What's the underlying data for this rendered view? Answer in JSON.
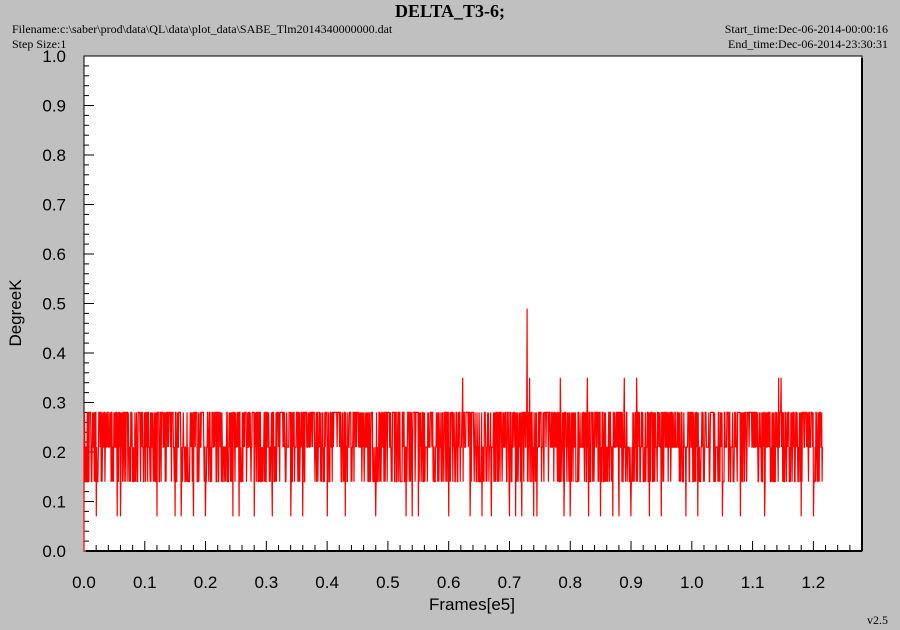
{
  "header": {
    "title": "DELTA_T3-6;",
    "filename": "Filename:c:\\saber\\prod\\data\\QL\\data\\plot_data\\SABE_Tlm2014340000000.dat",
    "step_size": "Step Size:1",
    "start_time": "Start_time:Dec-06-2014-00:00:16",
    "end_time": "End_time:Dec-06-2014-23:30:31"
  },
  "version": "v2.5",
  "colors": {
    "background": "#c0c0c0",
    "plot_bg": "#ffffff",
    "series": "#ff0000"
  },
  "chart_data": {
    "type": "line",
    "title": "DELTA_T3-6;",
    "xlabel": "Frames[e5]",
    "ylabel": "DegreeK",
    "xlim": [
      0.0,
      1.28
    ],
    "ylim": [
      0.0,
      1.0
    ],
    "x_ticks": [
      "0.0",
      "0.1",
      "0.2",
      "0.3",
      "0.4",
      "0.5",
      "0.6",
      "0.7",
      "0.8",
      "0.9",
      "1.0",
      "1.1",
      "1.2"
    ],
    "y_ticks": [
      "0.0",
      "0.1",
      "0.2",
      "0.3",
      "0.4",
      "0.5",
      "0.6",
      "0.7",
      "0.8",
      "0.9",
      "1.0"
    ],
    "grid": false,
    "series": [
      {
        "color": "#ff0000",
        "x_range": [
          0.0,
          1.215
        ],
        "levels": [
          0.07,
          0.14,
          0.21,
          0.28
        ],
        "typical_min": 0.14,
        "typical_max": 0.28,
        "spikes": [
          {
            "x": 0.623,
            "y": 0.35
          },
          {
            "x": 0.729,
            "y": 0.49
          },
          {
            "x": 0.733,
            "y": 0.35
          },
          {
            "x": 0.784,
            "y": 0.35
          },
          {
            "x": 0.828,
            "y": 0.35
          },
          {
            "x": 0.889,
            "y": 0.35
          },
          {
            "x": 0.909,
            "y": 0.35
          },
          {
            "x": 1.143,
            "y": 0.35
          },
          {
            "x": 1.147,
            "y": 0.35
          }
        ],
        "dips": [
          0.02,
          0.055,
          0.06,
          0.12,
          0.15,
          0.16,
          0.18,
          0.2,
          0.245,
          0.255,
          0.28,
          0.31,
          0.34,
          0.36,
          0.4,
          0.43,
          0.48,
          0.53,
          0.54,
          0.55,
          0.6,
          0.635,
          0.655,
          0.67,
          0.7,
          0.71,
          0.72,
          0.74,
          0.745,
          0.79,
          0.8,
          0.83,
          0.85,
          0.87,
          0.88,
          0.9,
          0.93,
          0.95,
          0.99,
          1.01,
          1.05,
          1.08,
          1.12,
          1.18,
          1.2
        ]
      }
    ]
  }
}
